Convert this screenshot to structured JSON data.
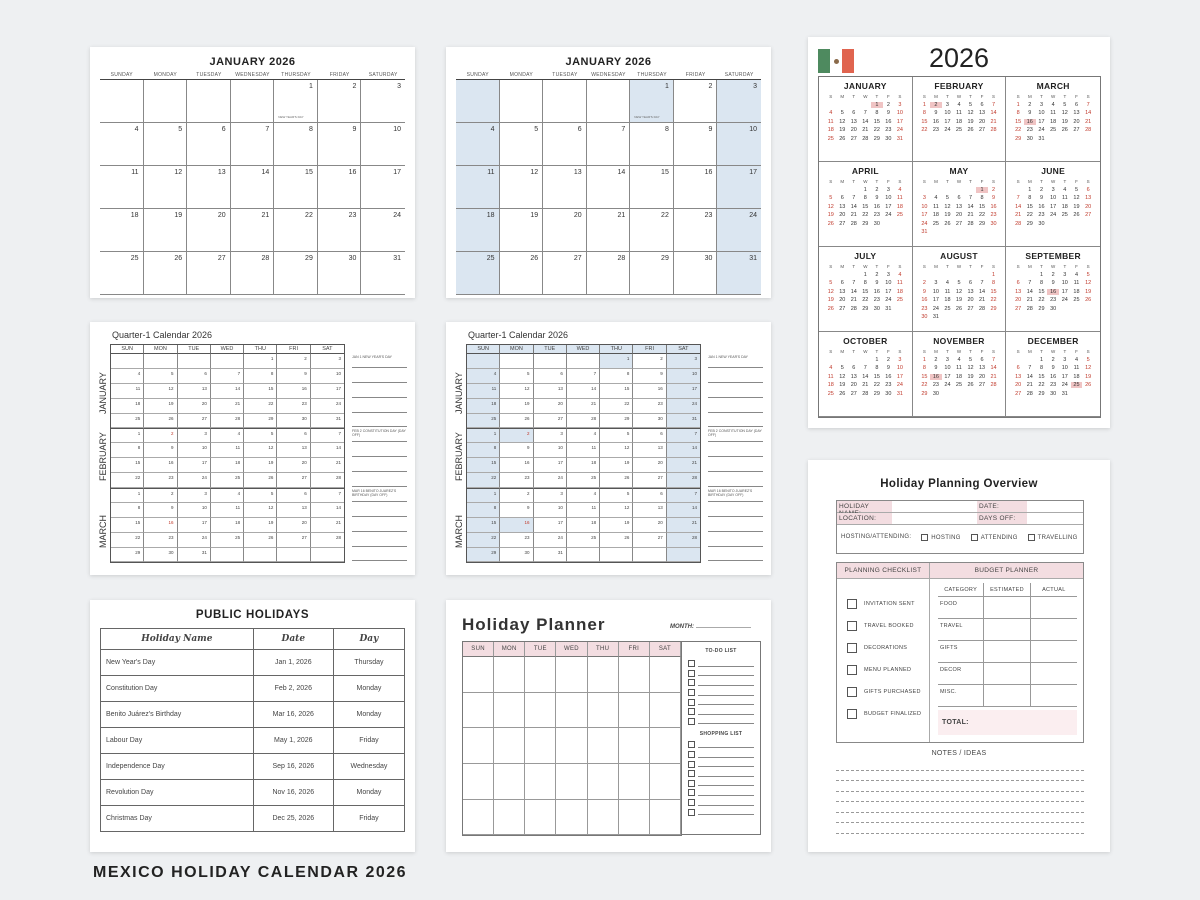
{
  "caption": "MEXICO HOLIDAY CALENDAR 2026",
  "weekdays_long": [
    "SUNDAY",
    "MONDAY",
    "TUESDAY",
    "WEDNESDAY",
    "THURSDAY",
    "FRIDAY",
    "SATURDAY"
  ],
  "weekdays_short": [
    "SUN",
    "MON",
    "TUE",
    "WED",
    "THU",
    "FRI",
    "SAT"
  ],
  "weekdays_letter": [
    "S",
    "M",
    "T",
    "W",
    "T",
    "F",
    "S"
  ],
  "colors": {
    "blue": "#dbe6f1",
    "pink": "#f3dde1",
    "holiday_red": "#c0392b",
    "highlight": "#f0c4c4"
  },
  "january": {
    "title": "JANUARY 2026",
    "note": "NEW YEAR'S DAY",
    "start": 4,
    "days": 31
  },
  "quarter": {
    "title": "Quarter-1 Calendar 2026",
    "months": [
      "JANUARY",
      "FEBRUARY",
      "MARCH"
    ],
    "notes": [
      "JAN 1 NEW YEAR'S DAY",
      "FEB 2 CONSTITUTION DAY (DAY OFF)",
      "MAR 16 BENITO JUAREZ'S BIRTHDAY (DAY OFF)"
    ]
  },
  "year": {
    "title": "2026",
    "flag": "mexico-flag",
    "months": [
      {
        "name": "JANUARY",
        "start": 4,
        "days": 31,
        "holiday": 1
      },
      {
        "name": "FEBRUARY",
        "start": 0,
        "days": 28,
        "holiday": 2
      },
      {
        "name": "MARCH",
        "start": 0,
        "days": 31,
        "holiday": 16
      },
      {
        "name": "APRIL",
        "start": 3,
        "days": 30,
        "holiday": null
      },
      {
        "name": "MAY",
        "start": 5,
        "days": 31,
        "holiday": 1
      },
      {
        "name": "JUNE",
        "start": 1,
        "days": 30,
        "holiday": null
      },
      {
        "name": "JULY",
        "start": 3,
        "days": 31,
        "holiday": null
      },
      {
        "name": "AUGUST",
        "start": 6,
        "days": 31,
        "holiday": null
      },
      {
        "name": "SEPTEMBER",
        "start": 2,
        "days": 30,
        "holiday": 16
      },
      {
        "name": "OCTOBER",
        "start": 4,
        "days": 31,
        "holiday": null
      },
      {
        "name": "NOVEMBER",
        "start": 0,
        "days": 30,
        "holiday": 16
      },
      {
        "name": "DECEMBER",
        "start": 2,
        "days": 31,
        "holiday": 25
      }
    ]
  },
  "public_holidays": {
    "title": "PUBLIC HOLIDAYS",
    "headers": [
      "Holiday Name",
      "Date",
      "Day"
    ],
    "rows": [
      [
        "New Year's Day",
        "Jan 1, 2026",
        "Thursday"
      ],
      [
        "Constitution Day",
        "Feb 2, 2026",
        "Monday"
      ],
      [
        "Benito Juárez's Birthday",
        "Mar 16, 2026",
        "Monday"
      ],
      [
        "Labour Day",
        "May 1, 2026",
        "Friday"
      ],
      [
        "Independence Day",
        "Sep 16, 2026",
        "Wednesday"
      ],
      [
        "Revolution Day",
        "Nov 16, 2026",
        "Monday"
      ],
      [
        "Christmas Day",
        "Dec 25, 2026",
        "Friday"
      ]
    ]
  },
  "planner": {
    "title": "Holiday Planner",
    "month_label": "MONTH:",
    "todo": "TO-DO LIST",
    "shopping": "SHOPPING LIST"
  },
  "overview": {
    "title": "Holiday Planning Overview",
    "holiday_name": "HOLIDAY NAME:",
    "date": "DATE:",
    "location": "LOCATION:",
    "days_off": "DAYS OFF:",
    "hosting_label": "HOSTING/ATTENDING:",
    "options": [
      "HOSTING",
      "ATTENDING",
      "TRAVELLING"
    ],
    "checklist_title": "PLANNING CHECKLIST",
    "budget_title": "BUDGET PLANNER",
    "checklist": [
      "INVITATION SENT",
      "TRAVEL BOOKED",
      "DECORATIONS",
      "MENU PLANNED",
      "GIFTS PURCHASED",
      "BUDGET FINALIZED"
    ],
    "budget_headers": [
      "CATEGORY",
      "ESTIMATED",
      "ACTUAL"
    ],
    "categories": [
      "FOOD",
      "TRAVEL",
      "GIFTS",
      "DECOR",
      "MISC."
    ],
    "total": "TOTAL:",
    "notes": "NOTES / IDEAS"
  }
}
